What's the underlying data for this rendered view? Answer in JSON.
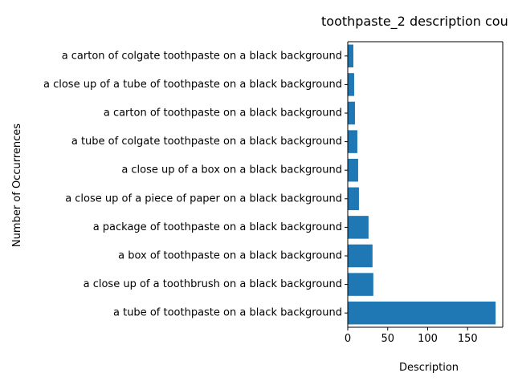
{
  "chart_data": {
    "type": "bar",
    "orientation": "horizontal",
    "title": "toothpaste_2 description cou",
    "xlabel": "Description",
    "ylabel": "Number of Occurrences",
    "categories": [
      "a tube of toothpaste on a black background",
      "a close up of a toothbrush on a black background",
      "a box of toothpaste on a black background",
      "a package of toothpaste on a black background",
      "a close up of a piece of paper on a black background",
      "a close up of a box on a black background",
      "a tube of colgate toothpaste on a black background",
      "a carton of toothpaste on a black background",
      "a close up of a tube of toothpaste on a black background",
      "a carton of colgate toothpaste on a black background"
    ],
    "values": [
      185,
      32,
      31,
      26,
      14,
      13,
      12,
      9,
      8,
      7
    ],
    "xlim": [
      0,
      194
    ],
    "xticks": [
      0,
      50,
      100,
      150
    ],
    "bar_color": "#1f77b4",
    "grid": false
  }
}
